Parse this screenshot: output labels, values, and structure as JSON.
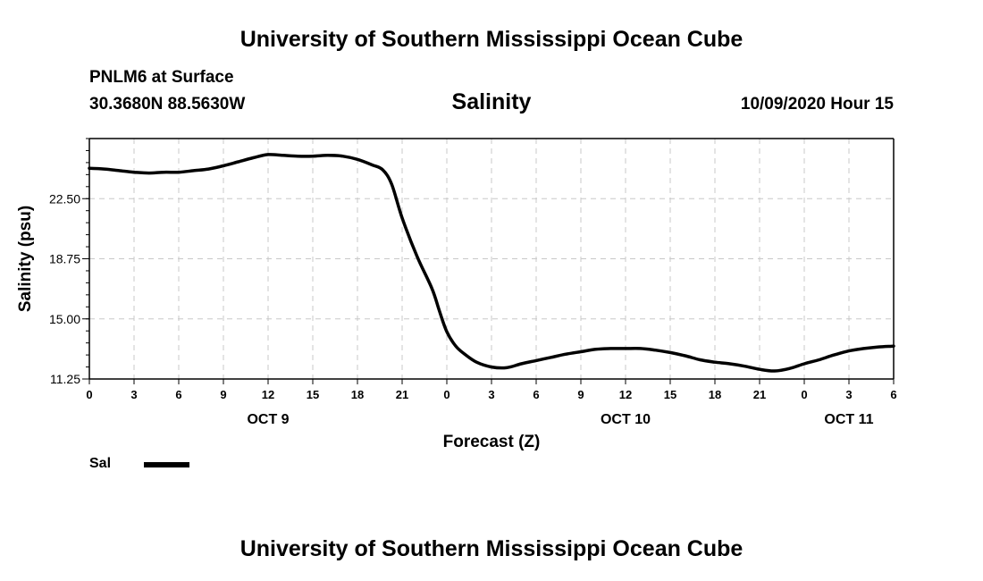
{
  "header": {
    "top_title": "University of Southern Mississippi Ocean Cube",
    "station": "PNLM6 at Surface",
    "coords": "30.3680N 88.5630W",
    "chart_title": "Salinity",
    "datetime": "10/09/2020 Hour 15",
    "bottom_title": "University of Southern Mississippi Ocean Cube"
  },
  "legend": {
    "label": "Sal",
    "color": "#000000"
  },
  "chart_data": {
    "type": "line",
    "title": "Salinity",
    "xlabel": "Forecast (Z)",
    "ylabel": "Salinity (psu)",
    "xlim": [
      0,
      54
    ],
    "ylim": [
      11.25,
      26.25
    ],
    "yticks": [
      "22.50",
      "18.75",
      "15.00",
      "11.25"
    ],
    "yticks_values": [
      22.5,
      18.75,
      15.0,
      11.25
    ],
    "xticks_values": [
      0,
      3,
      6,
      9,
      12,
      15,
      18,
      21,
      24,
      27,
      30,
      33,
      36,
      39,
      42,
      45,
      48,
      51,
      54
    ],
    "xtick_labels": [
      "0",
      "3",
      "6",
      "9",
      "12",
      "15",
      "18",
      "21",
      "0",
      "3",
      "6",
      "9",
      "12",
      "15",
      "18",
      "21",
      "0",
      "3",
      "6"
    ],
    "date_labels": [
      {
        "x": 12,
        "label": "OCT 9"
      },
      {
        "x": 36,
        "label": "OCT 10"
      },
      {
        "x": 51,
        "label": "OCT 11"
      }
    ],
    "grid": true,
    "series": [
      {
        "name": "Sal",
        "x": [
          0,
          1,
          2,
          3,
          4,
          5,
          6,
          7,
          8,
          9,
          10,
          11,
          12,
          13,
          14,
          15,
          16,
          17,
          18,
          19,
          19.7,
          20.3,
          21,
          22,
          23,
          23.5,
          24,
          24.6,
          25.2,
          26,
          27,
          28,
          29,
          30,
          31,
          32,
          33,
          34,
          35,
          36,
          37,
          38,
          39,
          40,
          41,
          42,
          43,
          44,
          45,
          46,
          47,
          48,
          49,
          50,
          51,
          52,
          53,
          54
        ],
        "values": [
          24.4,
          24.35,
          24.25,
          24.15,
          24.1,
          24.15,
          24.15,
          24.25,
          24.35,
          24.55,
          24.8,
          25.05,
          25.25,
          25.2,
          25.15,
          25.15,
          25.2,
          25.15,
          24.95,
          24.6,
          24.3,
          23.4,
          21.3,
          18.9,
          16.9,
          15.5,
          14.2,
          13.3,
          12.8,
          12.3,
          12.0,
          11.95,
          12.2,
          12.4,
          12.6,
          12.8,
          12.95,
          13.1,
          13.15,
          13.15,
          13.15,
          13.05,
          12.9,
          12.7,
          12.45,
          12.3,
          12.2,
          12.05,
          11.85,
          11.75,
          11.9,
          12.2,
          12.45,
          12.75,
          13.0,
          13.15,
          13.25,
          13.3
        ]
      }
    ]
  }
}
